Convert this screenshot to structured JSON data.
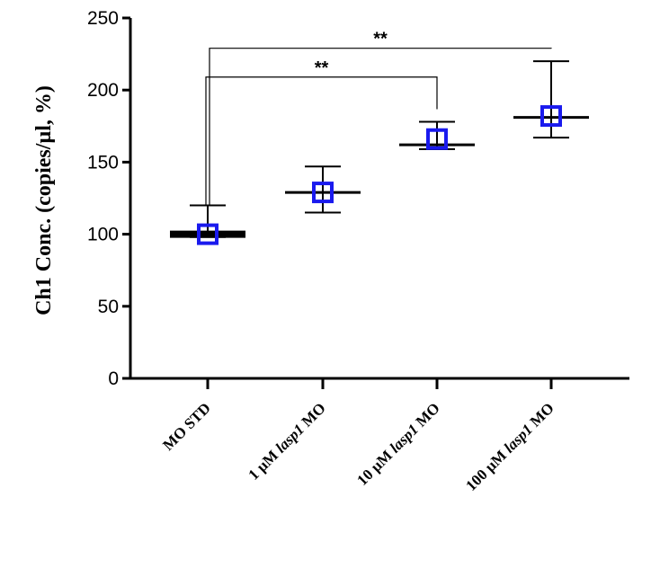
{
  "chart_data": {
    "type": "scatter",
    "title": "",
    "xlabel": "",
    "ylabel": "Ch1 Conc. (copies/µl, %)",
    "ylim": [
      0,
      250
    ],
    "yticks": [
      0,
      50,
      100,
      150,
      200,
      250
    ],
    "categories": [
      {
        "pre": "MO STD",
        "italic": "",
        "post": ""
      },
      {
        "pre": "1 µM ",
        "italic": "lasp1",
        "post": " MO"
      },
      {
        "pre": "10 µM ",
        "italic": "lasp1",
        "post": " MO"
      },
      {
        "pre": "100 µM ",
        "italic": "lasp1",
        "post": " MO"
      }
    ],
    "points": [
      {
        "mean": 100,
        "median": 100,
        "min": 98,
        "max": 120
      },
      {
        "mean": 129,
        "median": 129,
        "min": 115,
        "max": 147
      },
      {
        "mean": 166,
        "median": 162,
        "min": 159,
        "max": 178
      },
      {
        "mean": 182,
        "median": 181,
        "min": 167,
        "max": 220
      }
    ],
    "significance": [
      {
        "from": 0,
        "to": 2,
        "label": "**",
        "y": 209
      },
      {
        "from": 0,
        "to": 3,
        "label": "**",
        "y": 229
      }
    ],
    "marker_color": "#1a1aee",
    "grid": false
  }
}
